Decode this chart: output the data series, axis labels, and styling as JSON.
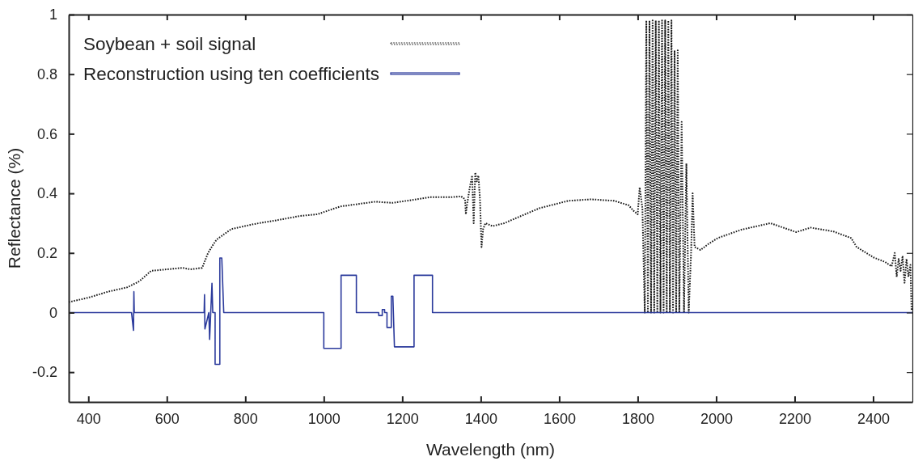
{
  "chart_data": {
    "type": "line",
    "xlabel": "Wavelength (nm)",
    "ylabel": "Reflectance (%)",
    "xlim": [
      350,
      2500
    ],
    "ylim": [
      -0.3,
      1
    ],
    "xticks": [
      400,
      600,
      800,
      1000,
      1200,
      1400,
      1600,
      1800,
      2000,
      2200,
      2400
    ],
    "yticks": [
      -0.2,
      0,
      0.2,
      0.4,
      0.6,
      0.8,
      1
    ],
    "grid": false,
    "legend": "top left",
    "series": [
      {
        "name": "Soybean + soil signal",
        "color": "#1a1a1a",
        "line_style": "dotted",
        "x": [
          350,
          400,
          450,
          500,
          530,
          560,
          600,
          640,
          660,
          690,
          705,
          719,
          727,
          764,
          822,
          881,
          939,
          984,
          1042,
          1131,
          1176,
          1270,
          1322,
          1350,
          1360,
          1362,
          1366,
          1372,
          1378,
          1382,
          1386,
          1390,
          1394,
          1398,
          1402,
          1406,
          1412,
          1430,
          1460,
          1549,
          1623,
          1681,
          1740,
          1777,
          1788,
          1800,
          1805,
          1812,
          1818,
          1822,
          1826,
          1830,
          1834,
          1838,
          1842,
          1846,
          1850,
          1854,
          1858,
          1862,
          1866,
          1870,
          1874,
          1878,
          1882,
          1886,
          1890,
          1894,
          1898,
          1902,
          1906,
          1912,
          1918,
          1924,
          1930,
          1936,
          1940,
          1945,
          1960,
          1980,
          2004,
          2064,
          2138,
          2204,
          2241,
          2299,
          2344,
          2358,
          2401,
          2430,
          2447,
          2455,
          2460,
          2465,
          2470,
          2475,
          2480,
          2485,
          2490,
          2495,
          2498
        ],
        "values": [
          0.035,
          0.05,
          0.07,
          0.085,
          0.105,
          0.14,
          0.145,
          0.15,
          0.145,
          0.15,
          0.2,
          0.23,
          0.245,
          0.28,
          0.297,
          0.31,
          0.324,
          0.33,
          0.356,
          0.372,
          0.368,
          0.387,
          0.387,
          0.39,
          0.38,
          0.33,
          0.37,
          0.42,
          0.46,
          0.3,
          0.47,
          0.44,
          0.46,
          0.38,
          0.22,
          0.28,
          0.3,
          0.29,
          0.3,
          0.35,
          0.375,
          0.38,
          0.375,
          0.36,
          0.343,
          0.33,
          0.42,
          0.35,
          0,
          0.98,
          0,
          0.98,
          0,
          0.98,
          0,
          0.98,
          0,
          0.98,
          0,
          0.98,
          0,
          0.98,
          0,
          0.98,
          0,
          0.98,
          0,
          0.88,
          0,
          0.88,
          0,
          0.64,
          0,
          0.5,
          0,
          0.2,
          0.4,
          0.22,
          0.21,
          0.23,
          0.25,
          0.278,
          0.3,
          0.27,
          0.285,
          0.272,
          0.25,
          0.22,
          0.185,
          0.17,
          0.155,
          0.2,
          0.12,
          0.18,
          0.14,
          0.19,
          0.1,
          0.18,
          0.12,
          0.16,
          0.005
        ]
      },
      {
        "name": "Reconstruction using ten coefficients",
        "color": "#2b3a9c",
        "line_style": "solid",
        "x": [
          350,
          510,
          515,
          516,
          517,
          695,
          696,
          697,
          707,
          709,
          715,
          717,
          723,
          723,
          735,
          735,
          740,
          745,
          1000,
          1000,
          1044,
          1044,
          1083,
          1083,
          1140,
          1140,
          1149,
          1149,
          1155,
          1155,
          1161,
          1161,
          1172,
          1172,
          1176,
          1180,
          1230,
          1230,
          1277,
          1277,
          2500
        ],
        "values": [
          0,
          0,
          -0.06,
          0.07,
          0,
          0,
          0.06,
          -0.055,
          0,
          -0.09,
          0.098,
          0,
          0,
          -0.174,
          -0.174,
          0.183,
          0.183,
          0,
          0,
          -0.12,
          -0.12,
          0.125,
          0.125,
          0,
          0,
          -0.01,
          -0.01,
          0.01,
          0.01,
          0,
          0,
          -0.05,
          -0.05,
          0.055,
          0.055,
          -0.115,
          -0.115,
          0.125,
          0.125,
          0,
          0
        ]
      }
    ]
  }
}
